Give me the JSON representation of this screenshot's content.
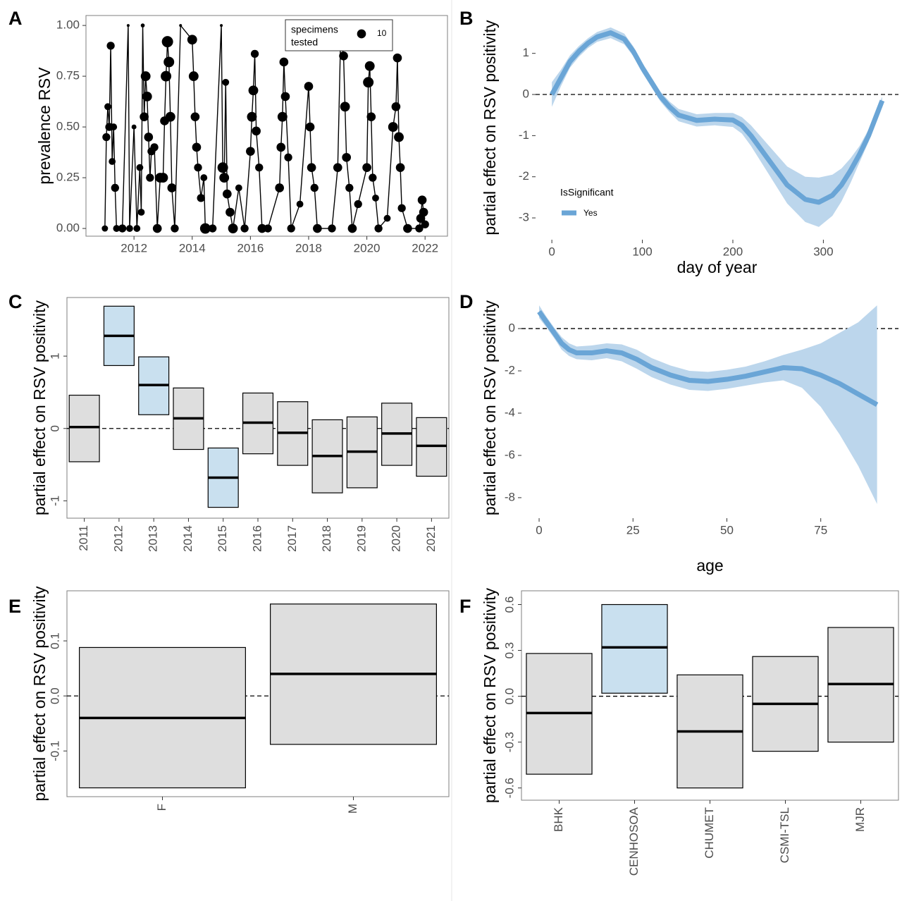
{
  "chart_data": [
    {
      "type": "scatter",
      "label": "A",
      "y_label": "prevalence RSV",
      "frame": true,
      "color": "#000000",
      "legend_title": [
        "specimens",
        "tested"
      ],
      "legend_size": 10,
      "x": [
        2011.0,
        2011.05,
        2011.1,
        2011.15,
        2011.2,
        2011.25,
        2011.3,
        2011.35,
        2011.4,
        2011.6,
        2011.8,
        2011.85,
        2012.0,
        2012.1,
        2012.2,
        2012.25,
        2012.3,
        2012.35,
        2012.4,
        2012.45,
        2012.5,
        2012.55,
        2012.6,
        2012.7,
        2012.8,
        2012.9,
        2013.0,
        2013.05,
        2013.1,
        2013.15,
        2013.2,
        2013.25,
        2013.3,
        2013.4,
        2013.6,
        2014.0,
        2014.05,
        2014.1,
        2014.15,
        2014.2,
        2014.3,
        2014.4,
        2014.45,
        2014.7,
        2015.0,
        2015.05,
        2015.1,
        2015.15,
        2015.2,
        2015.3,
        2015.4,
        2015.6,
        2015.8,
        2016.0,
        2016.05,
        2016.1,
        2016.15,
        2016.2,
        2016.3,
        2016.4,
        2016.6,
        2017.0,
        2017.05,
        2017.1,
        2017.15,
        2017.2,
        2017.3,
        2017.4,
        2017.7,
        2018.0,
        2018.05,
        2018.1,
        2018.2,
        2018.3,
        2018.8,
        2019.0,
        2019.1,
        2019.2,
        2019.25,
        2019.3,
        2019.4,
        2019.5,
        2019.7,
        2020.0,
        2020.05,
        2020.1,
        2020.15,
        2020.2,
        2020.3,
        2020.4,
        2020.7,
        2020.9,
        2021.0,
        2021.05,
        2021.1,
        2021.15,
        2021.2,
        2021.4,
        2021.8,
        2021.85,
        2021.9,
        2021.95,
        2022.0
      ],
      "values": [
        0,
        0.45,
        0.6,
        0.5,
        0.9,
        0.33,
        0.5,
        0.2,
        0,
        0,
        1.0,
        0,
        0.5,
        0,
        0.3,
        0.08,
        1.0,
        0.55,
        0.75,
        0.65,
        0.45,
        0.25,
        0.38,
        0.4,
        0,
        0.25,
        0.25,
        0.53,
        0.75,
        0.92,
        0.82,
        0.55,
        0.2,
        0,
        1.0,
        0.93,
        0.75,
        0.55,
        0.4,
        0.3,
        0.15,
        0.25,
        0,
        0,
        1.0,
        0.3,
        0.25,
        0.72,
        0.17,
        0.08,
        0,
        0.2,
        0,
        0.38,
        0.55,
        0.68,
        0.86,
        0.48,
        0.3,
        0,
        0,
        0.2,
        0.4,
        0.55,
        0.82,
        0.65,
        0.35,
        0,
        0.12,
        0.7,
        0.5,
        0.3,
        0.2,
        0,
        0,
        0.3,
        0.95,
        0.85,
        0.6,
        0.35,
        0.2,
        0,
        0.12,
        0.3,
        0.72,
        0.8,
        0.55,
        0.25,
        0.15,
        0,
        0.05,
        0.5,
        0.6,
        0.84,
        0.45,
        0.3,
        0.1,
        0,
        0,
        0.05,
        0.14,
        0.08,
        0.02
      ],
      "sizes": [
        5,
        8,
        6,
        8,
        8,
        6,
        6,
        8,
        6,
        8,
        1,
        6,
        3,
        6,
        6,
        6,
        2,
        10,
        12,
        12,
        10,
        8,
        8,
        8,
        10,
        12,
        12,
        10,
        14,
        16,
        14,
        12,
        10,
        8,
        1,
        12,
        12,
        10,
        10,
        8,
        8,
        6,
        14,
        8,
        1,
        14,
        12,
        6,
        10,
        10,
        12,
        6,
        8,
        10,
        12,
        12,
        8,
        10,
        8,
        10,
        8,
        10,
        10,
        12,
        10,
        10,
        8,
        8,
        6,
        10,
        10,
        10,
        8,
        10,
        8,
        10,
        14,
        10,
        12,
        10,
        8,
        10,
        8,
        10,
        14,
        12,
        10,
        8,
        6,
        8,
        6,
        12,
        10,
        10,
        12,
        10,
        8,
        10,
        8,
        10,
        10,
        10,
        8
      ],
      "xlim": [
        2010.35,
        2022.77
      ],
      "xticks": [
        2012,
        2014,
        2016,
        2018,
        2020,
        2022
      ],
      "ylim": [
        -0.038,
        1.049
      ],
      "yticks": [
        {
          "value": 0,
          "label": "0.00"
        },
        0.25,
        {
          "value": 0.5,
          "label": "0.50"
        },
        0.75,
        {
          "value": 1,
          "label": "1.00"
        }
      ]
    },
    {
      "type": "line",
      "label": "B",
      "y_label": "partial effect on RSV positivity",
      "x_label": "day of year",
      "frame": false,
      "hline": 0,
      "legend_title": "IsSignificant",
      "x": [
        0,
        10,
        20,
        30,
        40,
        50,
        65,
        80,
        90,
        100,
        110,
        120,
        130,
        140,
        160,
        180,
        200,
        210,
        220,
        240,
        260,
        280,
        295,
        310,
        320,
        330,
        340,
        350,
        365
      ],
      "series": [
        {
          "name": "Yes",
          "color": "#6aa5d6",
          "band_color": "#bcd6ec",
          "values": [
            0,
            0.4,
            0.8,
            1.05,
            1.25,
            1.4,
            1.5,
            1.35,
            1.05,
            0.65,
            0.3,
            -0.05,
            -0.3,
            -0.5,
            -0.63,
            -0.6,
            -0.62,
            -0.75,
            -1.0,
            -1.6,
            -2.2,
            -2.55,
            -2.62,
            -2.45,
            -2.2,
            -1.85,
            -1.45,
            -1.0,
            -0.15
          ],
          "upper": [
            0.3,
            0.6,
            0.95,
            1.18,
            1.37,
            1.52,
            1.63,
            1.48,
            1.17,
            0.77,
            0.42,
            0.07,
            -0.17,
            -0.35,
            -0.48,
            -0.45,
            -0.45,
            -0.55,
            -0.75,
            -1.25,
            -1.75,
            -2.0,
            -2.02,
            -1.95,
            -1.8,
            -1.55,
            -1.25,
            -0.85,
            -0.05
          ],
          "lower": [
            -0.3,
            0.2,
            0.65,
            0.92,
            1.13,
            1.28,
            1.37,
            1.22,
            0.93,
            0.53,
            0.18,
            -0.17,
            -0.43,
            -0.65,
            -0.78,
            -0.75,
            -0.79,
            -0.95,
            -1.25,
            -1.95,
            -2.65,
            -3.1,
            -3.22,
            -2.95,
            -2.6,
            -2.15,
            -1.65,
            -1.15,
            -0.25
          ]
        }
      ],
      "xlim": [
        -18,
        383
      ],
      "xticks": [
        0,
        100,
        200,
        300
      ],
      "ylim": [
        -3.53,
        1.92
      ],
      "yticks": [
        -3,
        -2,
        -1,
        0,
        1
      ]
    },
    {
      "type": "crossbar",
      "label": "C",
      "y_label": "partial effect on RSV positivity",
      "frame": true,
      "hline": 0,
      "categories": [
        "2011",
        "2012",
        "2013",
        "2014",
        "2015",
        "2016",
        "2017",
        "2018",
        "2019",
        "2020",
        "2021"
      ],
      "values": [
        0.02,
        1.28,
        0.6,
        0.14,
        -0.68,
        0.08,
        -0.06,
        -0.38,
        -0.32,
        -0.07,
        -0.24
      ],
      "lower": [
        -0.46,
        0.87,
        0.19,
        -0.29,
        -1.09,
        -0.35,
        -0.51,
        -0.89,
        -0.82,
        -0.51,
        -0.66
      ],
      "upper": [
        0.46,
        1.69,
        0.99,
        0.56,
        -0.27,
        0.49,
        0.37,
        0.12,
        0.16,
        0.35,
        0.15
      ],
      "colors": [
        "#dedede",
        "#c9e0ef",
        "#c9e0ef",
        "#dedede",
        "#c9e0ef",
        "#dedede",
        "#dedede",
        "#dedede",
        "#dedede",
        "#dedede",
        "#dedede"
      ],
      "ylim": [
        -1.24,
        1.81
      ],
      "yticks": [
        -1,
        0,
        1
      ]
    },
    {
      "type": "line",
      "label": "D",
      "y_label": "partial effect on RSV positivity",
      "x_label": "age",
      "frame": false,
      "hline": 0,
      "x": [
        0,
        2,
        4,
        6,
        8,
        10,
        14,
        18,
        22,
        26,
        30,
        35,
        40,
        45,
        50,
        55,
        60,
        65,
        70,
        75,
        80,
        85,
        90
      ],
      "series": [
        {
          "color": "#6aa5d6",
          "band_color": "#bcd6ec",
          "values": [
            0.8,
            0.3,
            -0.2,
            -0.7,
            -1.0,
            -1.15,
            -1.15,
            -1.05,
            -1.15,
            -1.45,
            -1.85,
            -2.2,
            -2.45,
            -2.5,
            -2.4,
            -2.25,
            -2.05,
            -1.85,
            -1.9,
            -2.2,
            -2.6,
            -3.1,
            -3.6
          ],
          "upper": [
            1.1,
            0.55,
            0.05,
            -0.4,
            -0.7,
            -0.85,
            -0.8,
            -0.7,
            -0.75,
            -1.0,
            -1.4,
            -1.75,
            -2.0,
            -2.05,
            -1.95,
            -1.8,
            -1.55,
            -1.25,
            -1.0,
            -0.7,
            -0.2,
            0.3,
            1.1
          ],
          "lower": [
            0.5,
            0.05,
            -0.45,
            -1.0,
            -1.3,
            -1.45,
            -1.5,
            -1.4,
            -1.55,
            -1.9,
            -2.3,
            -2.65,
            -2.9,
            -2.95,
            -2.85,
            -2.7,
            -2.55,
            -2.45,
            -2.8,
            -3.7,
            -5.0,
            -6.5,
            -8.3
          ]
        }
      ],
      "xlim": [
        -4.7,
        95.7
      ],
      "xticks": [
        0,
        25,
        50,
        75
      ],
      "ylim": [
        -8.97,
        1.47
      ],
      "yticks": [
        -8,
        -6,
        -4,
        -2,
        0
      ]
    },
    {
      "type": "crossbar",
      "label": "E",
      "y_label": "partial effect on RSV positivity",
      "frame": true,
      "hline": 0,
      "categories": [
        "F",
        "M"
      ],
      "values": [
        -0.04,
        0.04
      ],
      "lower": [
        -0.167,
        -0.088
      ],
      "upper": [
        0.088,
        0.167
      ],
      "colors": [
        "#dedede",
        "#dedede"
      ],
      "ylim": [
        -0.183,
        0.191
      ],
      "yticks": [
        -0.1,
        {
          "value": 0,
          "label": "0.0"
        },
        0.1
      ]
    },
    {
      "type": "crossbar",
      "label": "F",
      "y_label": "partial effect on RSV positivity",
      "frame": true,
      "hline": 0,
      "categories": [
        "BHK",
        "CENHOSOA",
        "CHUMET",
        "CSMI-TSL",
        "MJR"
      ],
      "values": [
        -0.11,
        0.32,
        -0.23,
        -0.05,
        0.08
      ],
      "lower": [
        -0.51,
        0.02,
        -0.6,
        -0.36,
        -0.3
      ],
      "upper": [
        0.28,
        0.6,
        0.14,
        0.26,
        0.45
      ],
      "colors": [
        "#dedede",
        "#c9e0ef",
        "#dedede",
        "#dedede",
        "#dedede"
      ],
      "ylim": [
        -0.68,
        0.69
      ],
      "yticks": [
        -0.6,
        -0.3,
        {
          "value": 0,
          "label": "0.0"
        },
        0.3,
        0.6
      ]
    }
  ]
}
